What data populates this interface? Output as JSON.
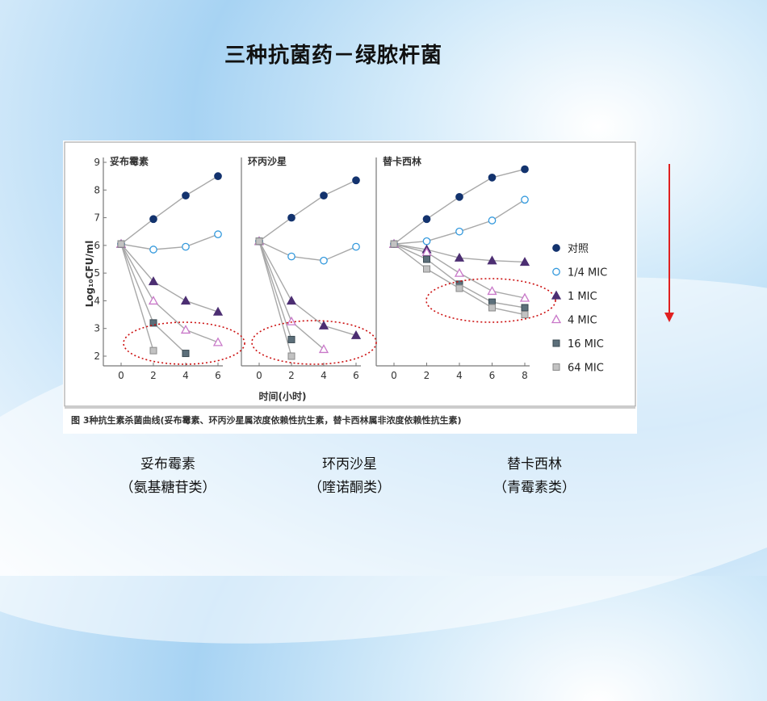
{
  "slide_title": "三种抗菌药－绿脓杆菌",
  "colors": {
    "arrow": "#e02020",
    "circle": "#cc1111",
    "axis": "#777777",
    "marker_dark": "#13336e",
    "marker_light_fill": "#ffffff",
    "marker_light_stroke": "#3399dd",
    "marker_purple": "#4c2e72",
    "marker_pink": "#c978c9",
    "marker_gray_dark": "#5c6f7a",
    "marker_gray_light": "#c2c2c2"
  },
  "figure": {
    "xlabel": "时间(小时)",
    "ylabel": "Log₁₀CFU/ml",
    "caption": "图 3种抗生素杀菌曲线(妥布霉素、环丙沙星属浓度依赖性抗生素，替卡西林属非浓度依赖性抗生素)"
  },
  "legend": [
    {
      "label": "对照",
      "marker": "dark-circle"
    },
    {
      "label": "1/4 MIC",
      "marker": "light-circle"
    },
    {
      "label": "1 MIC",
      "marker": "dark-triangle"
    },
    {
      "label": "4 MIC",
      "marker": "light-triangle"
    },
    {
      "label": "16 MIC",
      "marker": "dark-square"
    },
    {
      "label": "64 MIC",
      "marker": "light-square"
    }
  ],
  "bottom_labels": [
    {
      "name": "妥布霉素",
      "class": "（氨基糖苷类）"
    },
    {
      "name": "环丙沙星",
      "class": "（喹诺酮类）"
    },
    {
      "name": "替卡西林",
      "class": "（青霉素类）"
    }
  ],
  "chart_data": [
    {
      "type": "line",
      "title": "妥布霉素",
      "xlim": [
        0,
        6
      ],
      "ylim": [
        2,
        9
      ],
      "x_ticks": [
        0,
        2,
        4,
        6
      ],
      "y_ticks": [
        2,
        3,
        4,
        5,
        6,
        7,
        8,
        9
      ],
      "series": [
        {
          "name": "对照",
          "x": [
            0,
            2,
            4,
            6
          ],
          "y": [
            6.05,
            6.95,
            7.8,
            8.5
          ]
        },
        {
          "name": "1/4 MIC",
          "x": [
            0,
            2,
            4,
            6
          ],
          "y": [
            6.05,
            5.85,
            5.95,
            6.4
          ]
        },
        {
          "name": "1 MIC",
          "x": [
            0,
            2,
            4,
            6
          ],
          "y": [
            6.05,
            4.7,
            4.0,
            3.6
          ]
        },
        {
          "name": "4 MIC",
          "x": [
            0,
            2,
            4,
            6
          ],
          "y": [
            6.05,
            4.0,
            2.95,
            2.5
          ]
        },
        {
          "name": "16 MIC",
          "x": [
            0,
            2,
            4
          ],
          "y": [
            6.05,
            3.2,
            2.1
          ]
        },
        {
          "name": "64 MIC",
          "x": [
            0,
            2
          ],
          "y": [
            6.05,
            2.2
          ]
        }
      ]
    },
    {
      "type": "line",
      "title": "环丙沙星",
      "xlim": [
        0,
        6
      ],
      "ylim": [
        2,
        9
      ],
      "x_ticks": [
        0,
        2,
        4,
        6
      ],
      "y_ticks": [],
      "series": [
        {
          "name": "对照",
          "x": [
            0,
            2,
            4,
            6
          ],
          "y": [
            6.15,
            7.0,
            7.8,
            8.35
          ]
        },
        {
          "name": "1/4 MIC",
          "x": [
            0,
            2,
            4,
            6
          ],
          "y": [
            6.15,
            5.6,
            5.45,
            5.95
          ]
        },
        {
          "name": "1 MIC",
          "x": [
            0,
            2,
            4,
            6
          ],
          "y": [
            6.15,
            4.0,
            3.1,
            2.75
          ]
        },
        {
          "name": "4 MIC",
          "x": [
            0,
            2,
            4
          ],
          "y": [
            6.15,
            3.25,
            2.25
          ]
        },
        {
          "name": "16 MIC",
          "x": [
            0,
            2
          ],
          "y": [
            6.15,
            2.6
          ]
        },
        {
          "name": "64 MIC",
          "x": [
            0,
            2
          ],
          "y": [
            6.15,
            2.0
          ]
        }
      ]
    },
    {
      "type": "line",
      "title": "替卡西林",
      "xlim": [
        0,
        8
      ],
      "ylim": [
        2,
        9
      ],
      "x_ticks": [
        0,
        2,
        4,
        6,
        8
      ],
      "y_ticks": [],
      "series": [
        {
          "name": "对照",
          "x": [
            0,
            2,
            4,
            6,
            8
          ],
          "y": [
            6.05,
            6.95,
            7.75,
            8.45,
            8.75
          ]
        },
        {
          "name": "1/4 MIC",
          "x": [
            0,
            2,
            4,
            6,
            8
          ],
          "y": [
            6.05,
            6.15,
            6.5,
            6.9,
            7.65
          ]
        },
        {
          "name": "1 MIC",
          "x": [
            0,
            2,
            4,
            6,
            8
          ],
          "y": [
            6.05,
            5.85,
            5.55,
            5.45,
            5.4
          ]
        },
        {
          "name": "4 MIC",
          "x": [
            0,
            2,
            4,
            6,
            8
          ],
          "y": [
            6.05,
            5.75,
            5.0,
            4.35,
            4.1
          ]
        },
        {
          "name": "16 MIC",
          "x": [
            0,
            2,
            4,
            6,
            8
          ],
          "y": [
            6.05,
            5.5,
            4.6,
            3.95,
            3.75
          ]
        },
        {
          "name": "64 MIC",
          "x": [
            0,
            2,
            4,
            6,
            8
          ],
          "y": [
            6.05,
            5.15,
            4.45,
            3.75,
            3.5
          ]
        }
      ]
    }
  ]
}
